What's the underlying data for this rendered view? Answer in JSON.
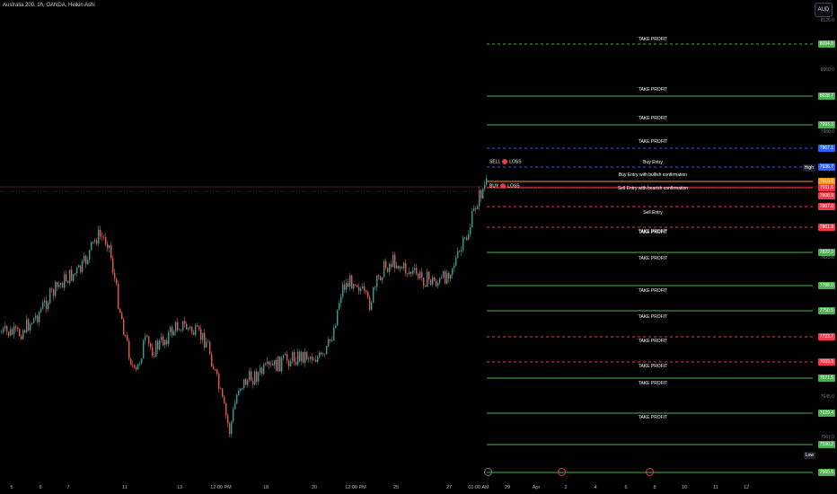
{
  "header": {
    "symbol": "Australia 200, 1h, OANDA, Heikin Ashi"
  },
  "currency_button": "AUD",
  "colors": {
    "bg": "#000000",
    "up": "#26a69a",
    "down": "#ef5350",
    "green_line": "#4caf50",
    "red_line": "#f23645",
    "blue_line": "#2962ff",
    "orange_line": "#ff9800"
  },
  "y_axis_ticks": [
    "8125.0",
    "8060.0",
    "7980.0",
    "7825.0",
    "7645.0",
    "7567.0"
  ],
  "x_axis_labels": [
    "5",
    "6",
    "7",
    "11",
    "13",
    "12:00 PM",
    "18",
    "20",
    "12:00 PM",
    "25",
    "27",
    "01:00 AM",
    "29",
    "Apr",
    "2",
    "4",
    "6",
    "8",
    "10",
    "11",
    "12"
  ],
  "levels": [
    {
      "label": "TAKE PROFIT",
      "price": "8094.8",
      "kind": "green",
      "style": "dashed"
    },
    {
      "label": "TAKE PROFIT",
      "price": "8028.7",
      "kind": "green",
      "style": "solid"
    },
    {
      "label": "TAKE PROFIT",
      "price": "7993.3",
      "kind": "green",
      "style": "solid"
    },
    {
      "label": "TAKE PROFIT",
      "price": "7967.1",
      "kind": "blue",
      "style": "dashed"
    },
    {
      "label": "Buy Entry",
      "price": "7936.7",
      "kind": "blue",
      "style": "dashed"
    },
    {
      "label": "Buy Entry with bullish confirmation",
      "price": "7919.5",
      "kind": "orange",
      "style": "solid"
    },
    {
      "label": "Sell Entry with bearish confirmation",
      "price": "7911.6",
      "kind": "red",
      "style": "solid"
    },
    {
      "label": "Sell Entry",
      "price": "7887.0",
      "kind": "red",
      "style": "dashed"
    },
    {
      "label": "TAKE PROFIT",
      "price": "7861.9",
      "kind": "red",
      "style": "dashed"
    },
    {
      "label": "TAKE PROFIT",
      "price": "7829.3",
      "kind": "green",
      "style": "solid"
    },
    {
      "label": "TAKE PROFIT",
      "price": "7788.0",
      "kind": "green",
      "style": "solid"
    },
    {
      "label": "TAKE PROFIT",
      "price": "7750.5",
      "kind": "green",
      "style": "solid"
    },
    {
      "label": "TAKE PROFIT",
      "price": "7723.7",
      "kind": "red",
      "style": "dashed"
    },
    {
      "label": "TAKE PROFIT",
      "price": "7693.9",
      "kind": "red",
      "style": "dashed"
    },
    {
      "label": "TAKE PROFIT",
      "price": "7671.5",
      "kind": "green",
      "style": "solid"
    },
    {
      "label": "TAKE PROFIT",
      "price": "7629.4",
      "kind": "green",
      "style": "solid"
    },
    {
      "label": "TAKE PROFIT",
      "price": "7590.2",
      "kind": "green",
      "style": "solid"
    },
    {
      "label": "",
      "price": "7560.6",
      "kind": "green",
      "style": "solid"
    }
  ],
  "extra_tags": [
    {
      "text": "High",
      "price": "7928.4"
    },
    {
      "text": "7908.9",
      "price": "7908.9"
    },
    {
      "text": "Low",
      "price": "7587.5"
    }
  ],
  "markers": {
    "sell_label": "SELL",
    "buy_label": "BUY",
    "loss_label": "LOSS"
  }
}
